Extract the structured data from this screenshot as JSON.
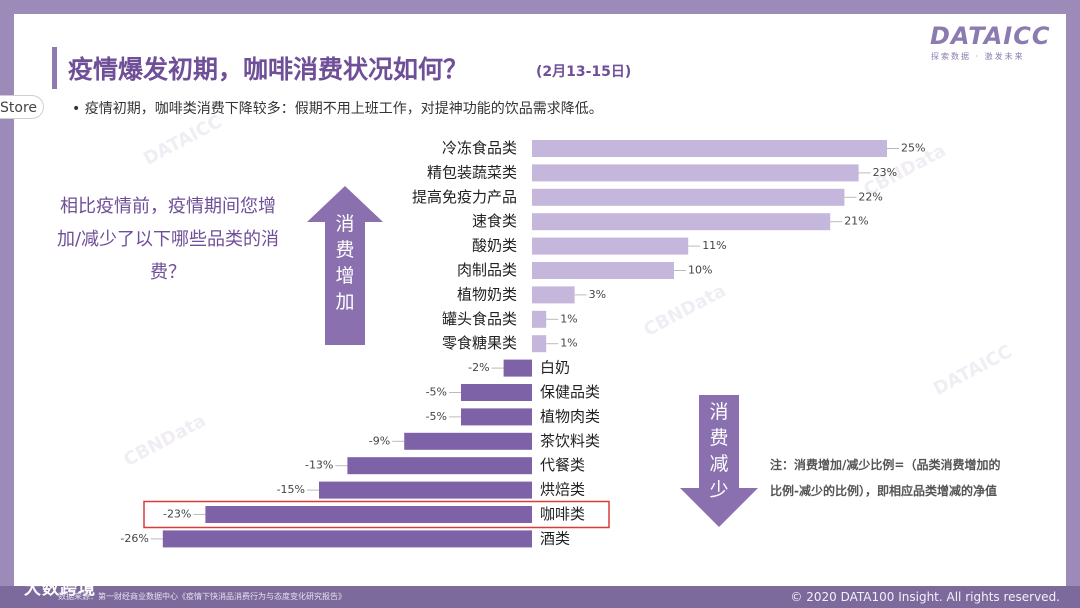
{
  "header": {
    "title": "疫情爆发初期，咖啡消费状况如何？",
    "date_range": "(2月13-15日)",
    "logo": "DATAICC",
    "logo_tagline": "探索数据 · 激发未来"
  },
  "store_tab": "Store",
  "bullet": "• 疫情初期，咖啡类消费下降较多：假期不用上班工作，对提神功能的饮品需求降低。",
  "question": "相比疫情前，疫情期间您增加/减少了以下哪些品类的消费？",
  "arrow_up_label": "消费增加",
  "arrow_down_label": "消费减少",
  "note": "注：消费增加/减少比例=（品类消费增加的比例-减少的比例），即相应品类增减的净值",
  "footer": {
    "source": "数据来源：第一财经商业数据中心《疫情下快消品消费行为与态度变化研究报告》",
    "copyright": "© 2020 DATA100 Insight. All rights reserved.",
    "brand": "大数跨境"
  },
  "colors": {
    "positive": "#c5b6dc",
    "negative": "#7e62a8",
    "highlight": "#d93b3b",
    "title": "#6f4f98"
  },
  "chart_data": {
    "type": "bar",
    "orientation": "horizontal",
    "categories": [
      "冷冻食品类",
      "精包装蔬菜类",
      "提高免疫力产品",
      "速食类",
      "酸奶类",
      "肉制品类",
      "植物奶类",
      "罐头食品类",
      "零食糖果类",
      "白奶",
      "保健品类",
      "植物肉类",
      "茶饮料类",
      "代餐类",
      "烘焙类",
      "咖啡类",
      "酒类"
    ],
    "values": [
      25,
      23,
      22,
      21,
      11,
      10,
      3,
      1,
      1,
      -2,
      -5,
      -5,
      -9,
      -13,
      -15,
      -23,
      -26
    ],
    "value_labels": [
      "25%",
      "23%",
      "22%",
      "21%",
      "11%",
      "10%",
      "3%",
      "1%",
      "1%",
      "-2%",
      "-5%",
      "-5%",
      "-9%",
      "-13%",
      "-15%",
      "-23%",
      "-26%"
    ],
    "unit": "%",
    "highlight_category": "咖啡类",
    "grid": false
  }
}
